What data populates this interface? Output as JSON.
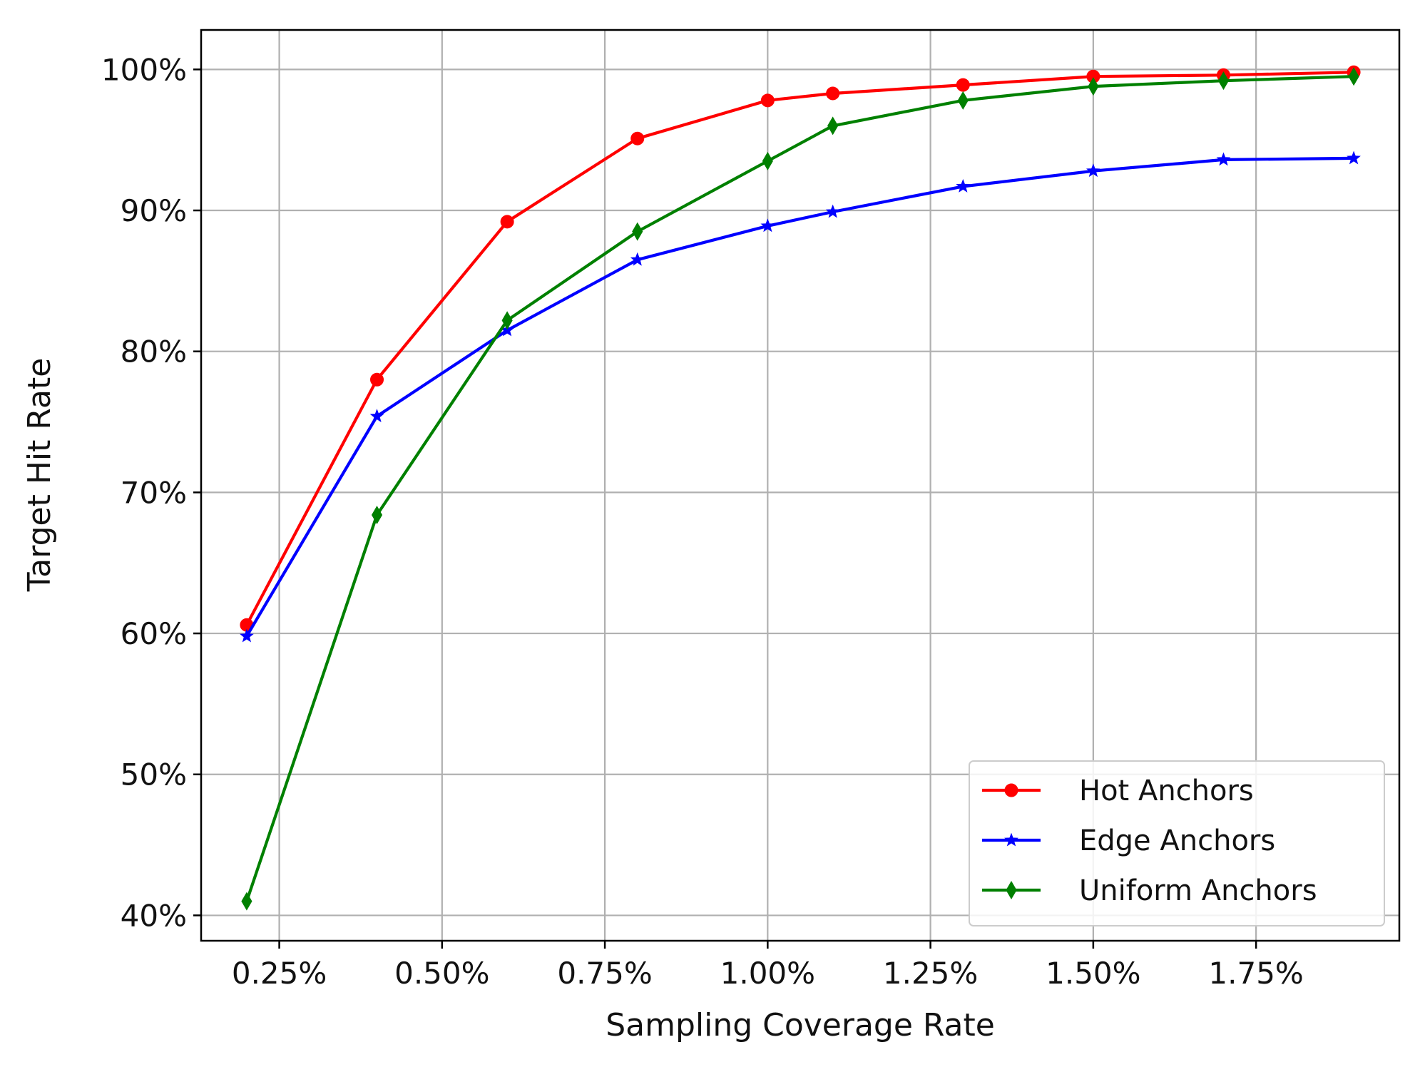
{
  "chart_data": {
    "type": "line",
    "title": "",
    "xlabel": "Sampling Coverage Rate",
    "ylabel": "Target Hit Rate",
    "xlim": [
      0.13,
      1.97
    ],
    "ylim": [
      38.2,
      102.8
    ],
    "x_ticks": [
      0.25,
      0.5,
      0.75,
      1.0,
      1.25,
      1.5,
      1.75
    ],
    "x_tick_labels": [
      "0.25%",
      "0.50%",
      "0.75%",
      "1.00%",
      "1.25%",
      "1.50%",
      "1.75%"
    ],
    "y_ticks": [
      40,
      50,
      60,
      70,
      80,
      90,
      100
    ],
    "y_tick_labels": [
      "40%",
      "50%",
      "60%",
      "70%",
      "80%",
      "90%",
      "100%"
    ],
    "grid": true,
    "legend_position": "lower-right",
    "x": [
      0.2,
      0.4,
      0.6,
      0.8,
      1.0,
      1.1,
      1.3,
      1.5,
      1.7,
      1.9
    ],
    "series": [
      {
        "name": "Hot Anchors",
        "color": "#ff0000",
        "marker": "circle",
        "values": [
          60.6,
          78.0,
          89.2,
          95.1,
          97.8,
          98.3,
          98.9,
          99.5,
          99.6,
          99.8
        ]
      },
      {
        "name": "Edge Anchors",
        "color": "#0000ff",
        "marker": "star",
        "values": [
          59.8,
          75.4,
          81.5,
          86.5,
          88.9,
          89.9,
          91.7,
          92.8,
          93.6,
          93.7
        ]
      },
      {
        "name": "Uniform Anchors",
        "color": "#008000",
        "marker": "diamond",
        "values": [
          41.0,
          68.4,
          82.2,
          88.5,
          93.5,
          96.0,
          97.8,
          98.8,
          99.2,
          99.5
        ]
      }
    ]
  }
}
